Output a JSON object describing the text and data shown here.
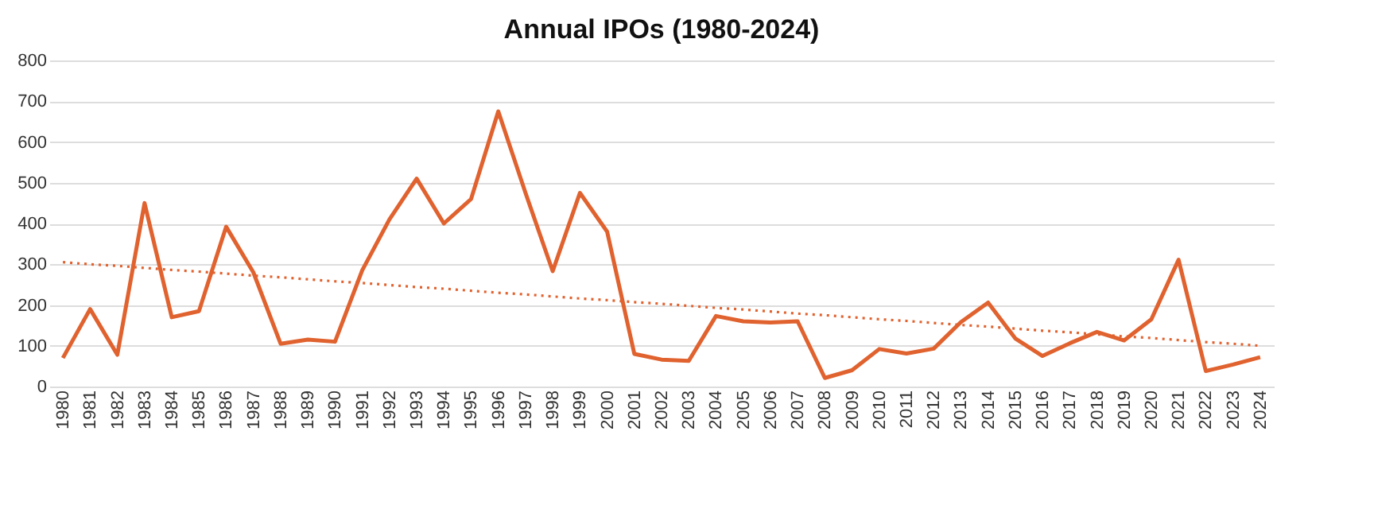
{
  "chart_data": {
    "type": "line",
    "title": "Annual IPOs (1980-2024)",
    "categories": [
      "1980",
      "1981",
      "1982",
      "1983",
      "1984",
      "1985",
      "1986",
      "1987",
      "1988",
      "1989",
      "1990",
      "1991",
      "1992",
      "1993",
      "1994",
      "1995",
      "1996",
      "1997",
      "1998",
      "1999",
      "2000",
      "2001",
      "2002",
      "2003",
      "2004",
      "2005",
      "2006",
      "2007",
      "2008",
      "2009",
      "2010",
      "2011",
      "2012",
      "2013",
      "2014",
      "2015",
      "2016",
      "2017",
      "2018",
      "2019",
      "2020",
      "2021",
      "2022",
      "2023",
      "2024"
    ],
    "series": [
      {
        "color": "#e0622f",
        "line_style": "solid",
        "values": [
          70,
          190,
          78,
          450,
          170,
          185,
          392,
          280,
          105,
          115,
          110,
          285,
          410,
          510,
          400,
          460,
          675,
          475,
          283,
          475,
          380,
          80,
          66,
          63,
          173,
          160,
          157,
          160,
          21,
          40,
          92,
          81,
          93,
          158,
          206,
          118,
          75,
          106,
          134,
          113,
          165,
          311,
          38,
          54,
          72
        ]
      },
      {
        "type": "line",
        "color": "#e0622f",
        "line_style": "dotted",
        "values": [
          305,
          300,
          296,
          291,
          286,
          282,
          277,
          272,
          268,
          263,
          258,
          254,
          249,
          244,
          240,
          235,
          230,
          226,
          221,
          216,
          212,
          207,
          203,
          198,
          193,
          189,
          184,
          179,
          175,
          170,
          165,
          161,
          156,
          151,
          147,
          142,
          137,
          133,
          128,
          123,
          119,
          114,
          109,
          105,
          100
        ]
      }
    ],
    "ylim": [
      0,
      800
    ],
    "yticks": [
      0,
      100,
      200,
      300,
      400,
      500,
      600,
      700,
      800
    ],
    "grid": "y",
    "marker": "none"
  }
}
